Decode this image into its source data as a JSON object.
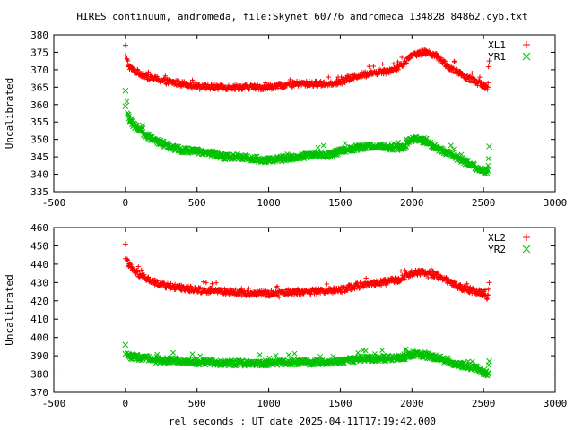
{
  "chart_data": [
    {
      "type": "scatter",
      "title": "HIRES continuum, andromeda, file:Skynet_60776_andromeda_134828_84862.cyb.txt",
      "xlabel": "",
      "ylabel": "Uncalibrated",
      "xlim": [
        -500,
        3000
      ],
      "ylim": [
        335,
        380
      ],
      "xticks": [
        "-500",
        "0",
        "500",
        "1000",
        "1500",
        "2000",
        "2500",
        "3000"
      ],
      "yticks": [
        "335",
        "340",
        "345",
        "350",
        "355",
        "360",
        "365",
        "370",
        "375",
        "380"
      ],
      "legend_position": "top-right",
      "series": [
        {
          "name": "XL1",
          "marker": "plus",
          "color": "#ff0000",
          "x": [
            0,
            0,
            25,
            50,
            100,
            150,
            200,
            300,
            400,
            500,
            600,
            700,
            800,
            900,
            1000,
            1100,
            1200,
            1300,
            1400,
            1500,
            1600,
            1700,
            1800,
            1900,
            1950,
            2000,
            2050,
            2100,
            2150,
            2200,
            2250,
            2300,
            2350,
            2400,
            2450,
            2500,
            2530,
            2540
          ],
          "y": [
            377,
            374,
            371,
            370,
            369,
            368,
            367.5,
            366.5,
            366,
            365.5,
            365,
            365,
            365,
            365,
            365,
            365.5,
            366,
            366,
            366,
            366.5,
            368,
            369,
            369.5,
            370.5,
            372,
            374,
            375,
            375,
            374.5,
            373,
            371,
            369.5,
            368.5,
            367.5,
            366.5,
            365.5,
            365,
            372.5
          ]
        },
        {
          "name": "YR1",
          "marker": "x",
          "color": "#00c000",
          "x": [
            0,
            0,
            25,
            50,
            100,
            150,
            200,
            300,
            400,
            500,
            600,
            700,
            800,
            900,
            1000,
            1100,
            1200,
            1300,
            1400,
            1500,
            1600,
            1700,
            1800,
            1900,
            1950,
            2000,
            2050,
            2100,
            2150,
            2200,
            2250,
            2300,
            2350,
            2400,
            2450,
            2500,
            2530,
            2540
          ],
          "y": [
            364,
            359.5,
            356,
            354.5,
            352.5,
            351,
            350,
            348,
            347,
            346.5,
            346,
            345,
            345,
            344.5,
            344,
            344.5,
            345,
            345.5,
            345.5,
            346.5,
            347.5,
            348,
            348,
            347.5,
            348,
            350,
            350,
            349.5,
            348,
            347,
            346,
            345,
            344,
            343,
            342,
            341,
            341,
            348
          ]
        }
      ]
    },
    {
      "type": "scatter",
      "title": "",
      "xlabel": "rel seconds : UT date 2025-04-11T17:19:42.000",
      "ylabel": "Uncalibrated",
      "xlim": [
        -500,
        3000
      ],
      "ylim": [
        370,
        460
      ],
      "xticks": [
        "-500",
        "0",
        "500",
        "1000",
        "1500",
        "2000",
        "2500",
        "3000"
      ],
      "yticks": [
        "370",
        "380",
        "390",
        "400",
        "410",
        "420",
        "430",
        "440",
        "450",
        "460"
      ],
      "legend_position": "top-right",
      "series": [
        {
          "name": "XL2",
          "marker": "plus",
          "color": "#ff0000",
          "x": [
            0,
            0,
            25,
            50,
            100,
            150,
            200,
            300,
            400,
            500,
            600,
            700,
            800,
            900,
            1000,
            1100,
            1200,
            1300,
            1400,
            1500,
            1600,
            1700,
            1800,
            1900,
            1950,
            2000,
            2050,
            2100,
            2150,
            2200,
            2250,
            2300,
            2350,
            2400,
            2450,
            2500,
            2530,
            2540
          ],
          "y": [
            451,
            443,
            440,
            437,
            434,
            432,
            430,
            428,
            427,
            426,
            425.5,
            425,
            424.5,
            424,
            424,
            424.5,
            425,
            425,
            425.5,
            426,
            428,
            429,
            430,
            431.5,
            433,
            435,
            435.5,
            435,
            434.5,
            433,
            431,
            429,
            427,
            426,
            425,
            424,
            422,
            430
          ]
        },
        {
          "name": "YR2",
          "marker": "x",
          "color": "#00c000",
          "x": [
            0,
            0,
            25,
            50,
            100,
            150,
            200,
            300,
            400,
            500,
            600,
            700,
            800,
            900,
            1000,
            1100,
            1200,
            1300,
            1400,
            1500,
            1600,
            1700,
            1800,
            1900,
            1950,
            2000,
            2050,
            2100,
            2150,
            2200,
            2250,
            2300,
            2350,
            2400,
            2450,
            2500,
            2530,
            2540
          ],
          "y": [
            396,
            391,
            390,
            389.5,
            389,
            388.5,
            388,
            387.5,
            387,
            386.5,
            386.5,
            386,
            386,
            386,
            386,
            386.5,
            386.5,
            386.5,
            386.5,
            387,
            388,
            388.5,
            388.5,
            388.5,
            389.5,
            391,
            390.5,
            390,
            389.5,
            388,
            387,
            386,
            385,
            384,
            383,
            381,
            380.5,
            387
          ]
        }
      ]
    }
  ]
}
